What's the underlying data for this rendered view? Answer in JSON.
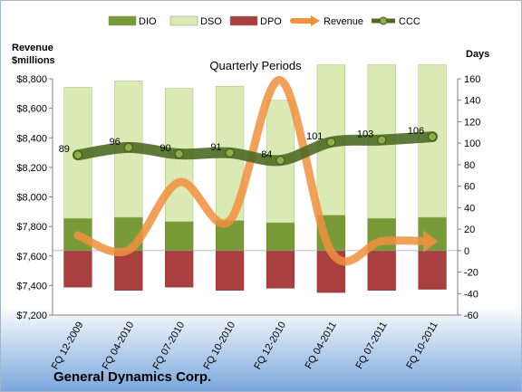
{
  "chart_data": {
    "type": "bar",
    "title": "Quarterly Periods",
    "company": "General Dynamics Corp.",
    "left_axis_label_line1": "Revenue",
    "left_axis_label_line2": "$millions",
    "right_axis_label": "Days",
    "categories": [
      "FQ 12-2009",
      "FQ 04-2010",
      "FQ 07-2010",
      "FQ 10-2010",
      "FQ 12-2010",
      "FQ 04-2011",
      "FQ 07-2011",
      "FQ 10-2011"
    ],
    "left_ylim": [
      7200,
      8800
    ],
    "left_ticks": [
      "$7,200",
      "$7,400",
      "$7,600",
      "$7,800",
      "$8,000",
      "$8,200",
      "$8,400",
      "$8,600",
      "$8,800"
    ],
    "right_ylim": [
      -60,
      160
    ],
    "right_ticks": [
      "-60",
      "-40",
      "-20",
      "0",
      "20",
      "40",
      "60",
      "80",
      "100",
      "120",
      "140",
      "160"
    ],
    "series": [
      {
        "name": "DIO",
        "axis": "right",
        "kind": "stacked-bar",
        "color": "#7a9a3a",
        "values": [
          30,
          31,
          27,
          28,
          26,
          33,
          30,
          31
        ]
      },
      {
        "name": "DSO",
        "axis": "right",
        "kind": "stacked-bar",
        "color": "#dbe9b4",
        "values": [
          122,
          127,
          124,
          125,
          114,
          140,
          143,
          142
        ]
      },
      {
        "name": "DPO",
        "axis": "right",
        "kind": "bar-negative",
        "color": "#a8403f",
        "values": [
          -34,
          -37,
          -34,
          -37,
          -35,
          -39,
          -37,
          -36
        ]
      },
      {
        "name": "Revenue",
        "axis": "left",
        "kind": "line",
        "color": "#f0913e",
        "values": [
          7740,
          7640,
          8100,
          7840,
          8790,
          7630,
          7700,
          7700
        ]
      },
      {
        "name": "CCC",
        "axis": "right",
        "kind": "line",
        "color": "#4d6a23",
        "values": [
          89,
          96,
          90,
          91,
          84,
          101,
          103,
          106
        ],
        "labels": [
          "89",
          "96",
          "90",
          "91",
          "84",
          "101",
          "103",
          "106"
        ]
      }
    ],
    "legend": {
      "position": "top",
      "entries": [
        "DIO",
        "DSO",
        "DPO",
        "Revenue",
        "CCC"
      ]
    },
    "grid": false
  }
}
